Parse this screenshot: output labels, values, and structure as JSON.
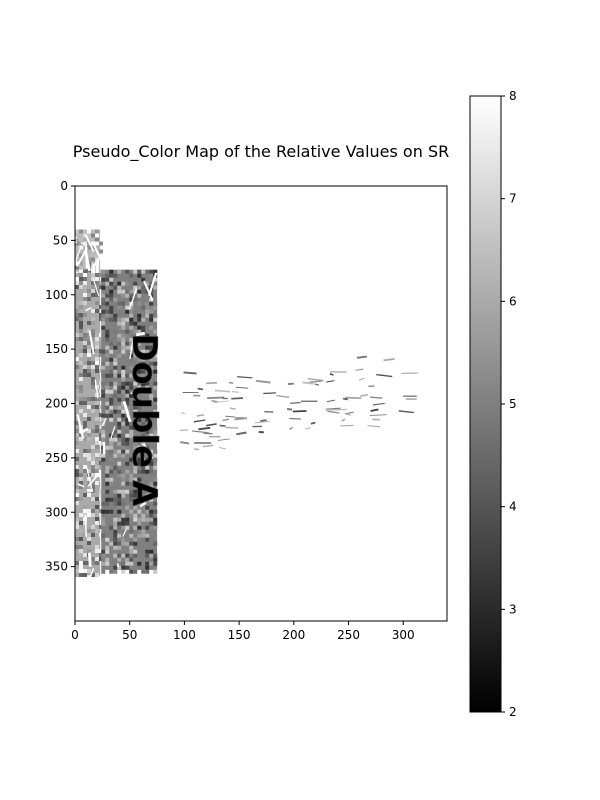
{
  "chart_data": {
    "type": "heatmap",
    "title": "Pseudo_Color Map of the Relative Values on SR",
    "xlabel": "",
    "ylabel": "",
    "x_range": [
      0,
      340
    ],
    "y_range": [
      0,
      400
    ],
    "y_inverted": true,
    "x_ticks": [
      "0",
      "50",
      "100",
      "150",
      "200",
      "250",
      "300"
    ],
    "x_tick_values": [
      0,
      50,
      100,
      150,
      200,
      250,
      300
    ],
    "y_ticks": [
      "0",
      "50",
      "100",
      "150",
      "200",
      "250",
      "300",
      "350"
    ],
    "y_tick_values": [
      0,
      50,
      100,
      150,
      200,
      250,
      300,
      350
    ],
    "colormap": "gray",
    "colorbar": {
      "range": [
        2,
        8
      ],
      "ticks": [
        "2",
        "3",
        "4",
        "5",
        "6",
        "7",
        "8"
      ],
      "tick_values": [
        2,
        3,
        4,
        5,
        6,
        7,
        8
      ],
      "low_color": "#000000",
      "high_color": "#ffffff"
    },
    "grid": false,
    "image_text": "Double A",
    "regions": [
      {
        "name": "upper-left-patch",
        "x": [
          0,
          23
        ],
        "y": [
          40,
          80
        ],
        "value": 6.4
      },
      {
        "name": "left-strip",
        "x": [
          0,
          23
        ],
        "y": [
          80,
          358
        ],
        "value": 6.0
      },
      {
        "name": "label-panel",
        "x": [
          24,
          75
        ],
        "y": [
          77,
          353
        ],
        "value": 5.0
      },
      {
        "name": "faint-streaks",
        "x": [
          95,
          305
        ],
        "y": [
          120,
          300
        ],
        "value": 3.5
      }
    ]
  }
}
